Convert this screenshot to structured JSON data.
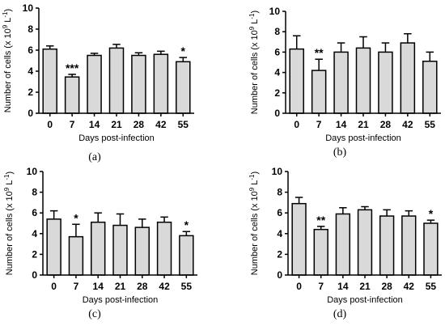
{
  "colors": {
    "bar_fill": "#d9d9d9",
    "bar_stroke": "#000000",
    "axis": "#000000"
  },
  "chart_data": [
    {
      "panel": "(a)",
      "type": "bar",
      "categories": [
        "0",
        "7",
        "14",
        "21",
        "28",
        "42",
        "55"
      ],
      "values": [
        6.1,
        3.45,
        5.5,
        6.2,
        5.5,
        5.6,
        4.9
      ],
      "errors": [
        0.3,
        0.25,
        0.2,
        0.35,
        0.25,
        0.3,
        0.4
      ],
      "significance": [
        "",
        "***",
        "",
        "",
        "",
        "",
        "*"
      ],
      "xlabel": "Days post-infection",
      "ylabel_main": "Number of cells (x 10",
      "ylabel_sup": "9",
      "ylabel_end": " L",
      "ylabel_sup2": "-1",
      "ylabel_close": ")",
      "ylim": [
        0,
        10
      ],
      "yticks": [
        "0",
        "2",
        "4",
        "6",
        "8",
        "10"
      ],
      "grid": false
    },
    {
      "panel": "(b)",
      "type": "bar",
      "categories": [
        "0",
        "7",
        "14",
        "21",
        "28",
        "42",
        "55"
      ],
      "values": [
        6.3,
        4.2,
        6.0,
        6.4,
        6.0,
        6.9,
        5.1
      ],
      "errors": [
        1.3,
        1.1,
        0.9,
        1.1,
        0.9,
        0.9,
        0.9
      ],
      "significance": [
        "",
        "**",
        "",
        "",
        "",
        "",
        ""
      ],
      "xlabel": "Days post-infection",
      "ylabel_main": "Number of cells (x 10",
      "ylabel_sup": "9",
      "ylabel_end": " L",
      "ylabel_sup2": "-1",
      "ylabel_close": ")",
      "ylim": [
        0,
        10
      ],
      "yticks": [
        "0",
        "2",
        "4",
        "6",
        "8",
        "10"
      ],
      "grid": false
    },
    {
      "panel": "(c)",
      "type": "bar",
      "categories": [
        "0",
        "7",
        "14",
        "21",
        "28",
        "42",
        "55"
      ],
      "values": [
        5.4,
        3.7,
        5.1,
        4.8,
        4.6,
        5.1,
        3.8
      ],
      "errors": [
        0.8,
        1.2,
        0.9,
        1.1,
        0.8,
        0.5,
        0.4
      ],
      "significance": [
        "",
        "*",
        "",
        "",
        "",
        "",
        "*"
      ],
      "xlabel": "Days post-infection",
      "ylabel_main": "Number of cells (x 10",
      "ylabel_sup": "9",
      "ylabel_end": " L",
      "ylabel_sup2": "-1",
      "ylabel_close": ")",
      "ylim": [
        0,
        10
      ],
      "yticks": [
        "0",
        "2",
        "4",
        "6",
        "8",
        "10"
      ],
      "grid": false
    },
    {
      "panel": "(d)",
      "type": "bar",
      "categories": [
        "0",
        "7",
        "14",
        "21",
        "28",
        "42",
        "55"
      ],
      "values": [
        6.9,
        4.4,
        5.9,
        6.3,
        5.7,
        5.7,
        5.0
      ],
      "errors": [
        0.6,
        0.3,
        0.6,
        0.3,
        0.6,
        0.5,
        0.3
      ],
      "significance": [
        "",
        "**",
        "",
        "",
        "",
        "",
        "*"
      ],
      "xlabel": "Days post-infection",
      "ylabel_main": "Number of cells (x 10",
      "ylabel_sup": "9",
      "ylabel_end": " L",
      "ylabel_sup2": "-1",
      "ylabel_close": ")",
      "ylim": [
        0,
        10
      ],
      "yticks": [
        "0",
        "2",
        "4",
        "6",
        "8",
        "10"
      ],
      "grid": false
    }
  ]
}
